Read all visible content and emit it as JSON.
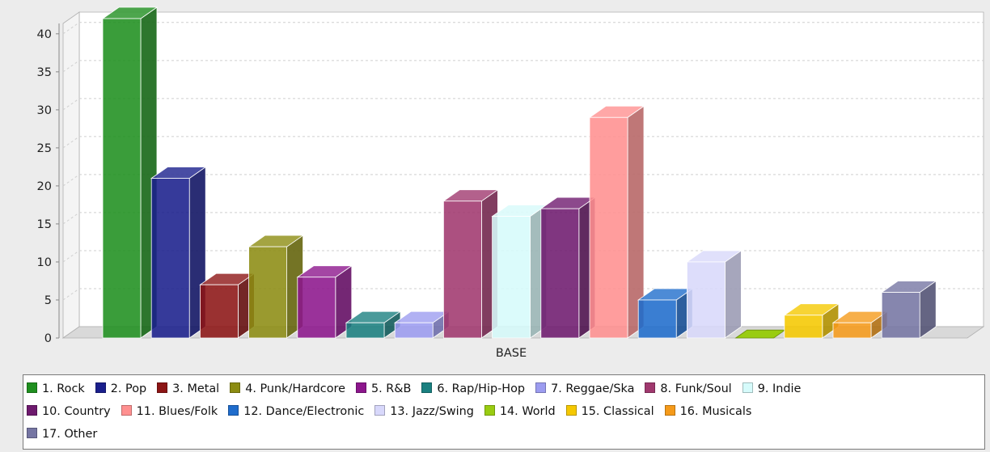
{
  "chart_data": {
    "type": "bar",
    "title": "",
    "xlabel": "",
    "ylabel": "",
    "categories": [
      "BASE"
    ],
    "ylim": [
      0,
      42
    ],
    "yticks": [
      0,
      5,
      10,
      15,
      20,
      25,
      30,
      35,
      40
    ],
    "grid": true,
    "legend_position": "bottom",
    "series": [
      {
        "name": "1. Rock",
        "values": [
          42
        ],
        "color": "#1f8f1f"
      },
      {
        "name": "2. Pop",
        "values": [
          21
        ],
        "color": "#1a1f8c"
      },
      {
        "name": "3. Metal",
        "values": [
          7
        ],
        "color": "#8c1515"
      },
      {
        "name": "4. Punk/Hardcore",
        "values": [
          12
        ],
        "color": "#8c8c12"
      },
      {
        "name": "5. R&B",
        "values": [
          8
        ],
        "color": "#8c168c"
      },
      {
        "name": "6. Rap/Hip-Hop",
        "values": [
          2
        ],
        "color": "#1a8080"
      },
      {
        "name": "7. Reggae/Ska",
        "values": [
          2
        ],
        "color": "#9c9cf0"
      },
      {
        "name": "8. Funk/Soul",
        "values": [
          18
        ],
        "color": "#a0386e"
      },
      {
        "name": "9. Indie",
        "values": [
          16
        ],
        "color": "#d6fbfb"
      },
      {
        "name": "10. Country",
        "values": [
          17
        ],
        "color": "#6e1a6e"
      },
      {
        "name": "11. Blues/Folk",
        "values": [
          29
        ],
        "color": "#ff9090"
      },
      {
        "name": "12. Dance/Electronic",
        "values": [
          5
        ],
        "color": "#1f6ccc"
      },
      {
        "name": "13. Jazz/Swing",
        "values": [
          10
        ],
        "color": "#d8d8fb"
      },
      {
        "name": "14. World",
        "values": [
          0
        ],
        "color": "#99cc11"
      },
      {
        "name": "15. Classical",
        "values": [
          3
        ],
        "color": "#f5c800"
      },
      {
        "name": "16. Musicals",
        "values": [
          2
        ],
        "color": "#f59a1a"
      },
      {
        "name": "17. Other",
        "values": [
          6
        ],
        "color": "#7575a3"
      }
    ]
  }
}
